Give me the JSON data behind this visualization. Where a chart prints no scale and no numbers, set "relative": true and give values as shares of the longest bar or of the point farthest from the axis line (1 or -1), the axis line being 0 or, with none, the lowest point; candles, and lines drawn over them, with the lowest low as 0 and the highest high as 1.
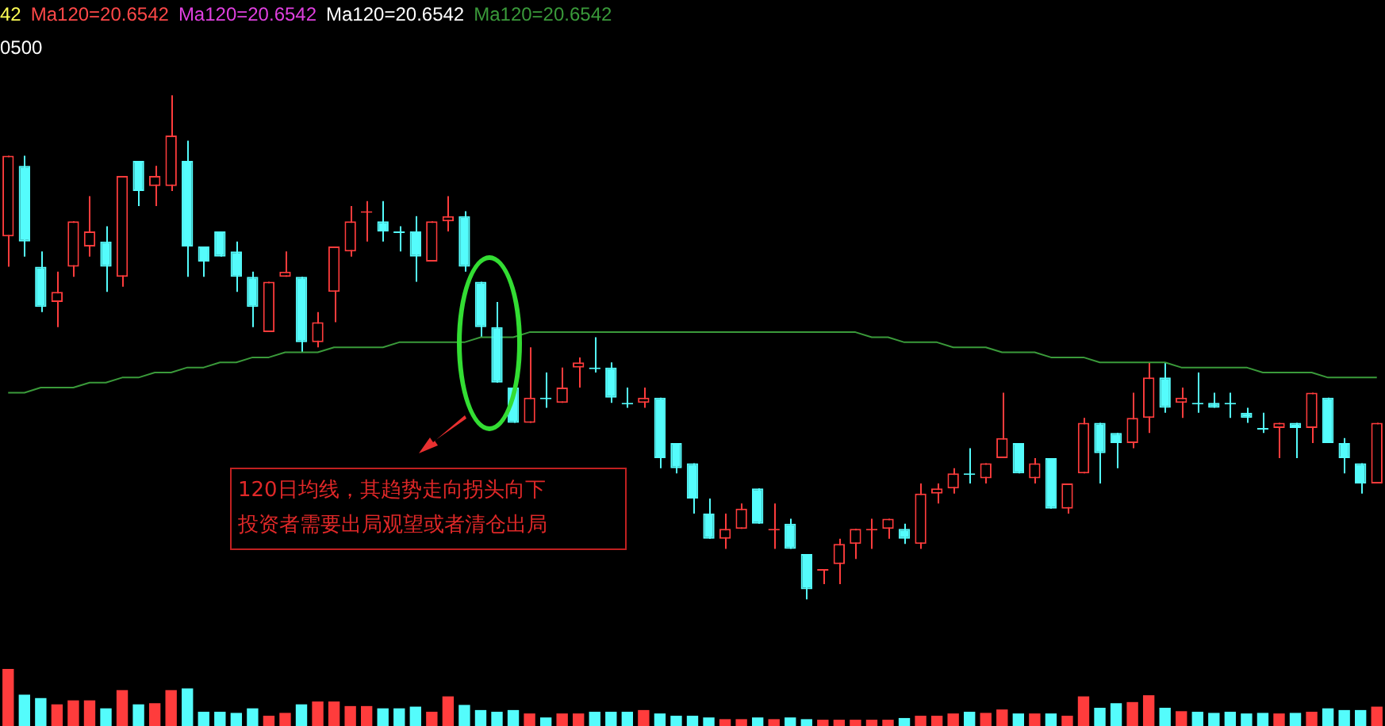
{
  "chart_data": [
    {
      "type": "candlestick",
      "relative": true,
      "legend": "top left",
      "categories": [
        null,
        null,
        null,
        null,
        null,
        null,
        null,
        null,
        null,
        null,
        null,
        null,
        null,
        null,
        null,
        null,
        null,
        null,
        null,
        null,
        null,
        null,
        null,
        null,
        null,
        null,
        null,
        null,
        null,
        null,
        null,
        null,
        null,
        null,
        null,
        null,
        null,
        null,
        null,
        null,
        null,
        null,
        null,
        null,
        null,
        null,
        null,
        null,
        null,
        null,
        null,
        null,
        null,
        null,
        null,
        null,
        null,
        null,
        null,
        null,
        null,
        null,
        null,
        null,
        null,
        null,
        null,
        null,
        null,
        null,
        null,
        null,
        null,
        null,
        null,
        null,
        null,
        null,
        null,
        null,
        null,
        null,
        null,
        null,
        null
      ],
      "ohlc": [
        [
          0.72,
          0.88,
          0.66,
          0.88
        ],
        [
          0.86,
          0.88,
          0.68,
          0.71
        ],
        [
          0.66,
          0.69,
          0.57,
          0.58
        ],
        [
          0.59,
          0.65,
          0.54,
          0.61
        ],
        [
          0.66,
          0.75,
          0.64,
          0.75
        ],
        [
          0.7,
          0.8,
          0.68,
          0.73
        ],
        [
          0.71,
          0.74,
          0.61,
          0.66
        ],
        [
          0.64,
          0.84,
          0.62,
          0.84
        ],
        [
          0.87,
          0.87,
          0.78,
          0.81
        ],
        [
          0.82,
          0.86,
          0.78,
          0.84
        ],
        [
          0.82,
          1,
          0.81,
          0.92
        ],
        [
          0.87,
          0.91,
          0.64,
          0.7
        ],
        [
          0.7,
          0.7,
          0.64,
          0.67
        ],
        [
          0.73,
          0.73,
          0.68,
          0.68
        ],
        [
          0.69,
          0.71,
          0.61,
          0.64
        ],
        [
          0.64,
          0.65,
          0.54,
          0.58
        ],
        [
          0.53,
          0.63,
          0.53,
          0.63
        ],
        [
          0.64,
          0.69,
          0.64,
          0.65
        ],
        [
          0.64,
          0.64,
          0.49,
          0.51
        ],
        [
          0.51,
          0.57,
          0.5,
          0.55
        ],
        [
          0.61,
          0.7,
          0.55,
          0.7
        ],
        [
          0.69,
          0.78,
          0.68,
          0.75
        ],
        [
          0.77,
          0.79,
          0.71,
          0.77
        ],
        [
          0.75,
          0.79,
          0.71,
          0.73
        ],
        [
          0.73,
          0.74,
          0.69,
          0.73
        ],
        [
          0.73,
          0.76,
          0.63,
          0.68
        ],
        [
          0.67,
          0.75,
          0.67,
          0.75
        ],
        [
          0.75,
          0.8,
          0.73,
          0.76
        ],
        [
          0.76,
          0.77,
          0.65,
          0.66
        ],
        [
          0.63,
          0.63,
          0.52,
          0.54
        ],
        [
          0.54,
          0.59,
          0.43,
          0.43
        ],
        [
          0.42,
          0.42,
          0.35,
          0.35
        ],
        [
          0.35,
          0.5,
          0.35,
          0.4
        ],
        [
          0.4,
          0.45,
          0.38,
          0.4
        ],
        [
          0.39,
          0.46,
          0.39,
          0.42
        ],
        [
          0.46,
          0.48,
          0.42,
          0.47
        ],
        [
          0.46,
          0.52,
          0.45,
          0.46
        ],
        [
          0.46,
          0.47,
          0.39,
          0.4
        ],
        [
          0.39,
          0.42,
          0.38,
          0.39
        ],
        [
          0.39,
          0.42,
          0.38,
          0.4
        ],
        [
          0.4,
          0.4,
          0.26,
          0.28
        ],
        [
          0.31,
          0.31,
          0.25,
          0.26
        ],
        [
          0.27,
          0.27,
          0.17,
          0.2
        ],
        [
          0.17,
          0.2,
          0.12,
          0.12
        ],
        [
          0.12,
          0.17,
          0.1,
          0.14
        ],
        [
          0.14,
          0.19,
          0.14,
          0.18
        ],
        [
          0.22,
          0.22,
          0.15,
          0.15
        ],
        [
          0.14,
          0.19,
          0.1,
          0.14
        ],
        [
          0.15,
          0.16,
          0.1,
          0.1
        ],
        [
          0.09,
          0.09,
          0,
          0.02
        ],
        [
          0.06,
          0.06,
          0.03,
          0.06
        ],
        [
          0.07,
          0.12,
          0.03,
          0.11
        ],
        [
          0.11,
          0.14,
          0.08,
          0.14
        ],
        [
          0.14,
          0.16,
          0.1,
          0.14
        ],
        [
          0.14,
          0.16,
          0.12,
          0.16
        ],
        [
          0.14,
          0.15,
          0.11,
          0.12
        ],
        [
          0.11,
          0.23,
          0.1,
          0.21
        ],
        [
          0.21,
          0.23,
          0.19,
          0.22
        ],
        [
          0.22,
          0.26,
          0.21,
          0.25
        ],
        [
          0.25,
          0.3,
          0.23,
          0.25
        ],
        [
          0.24,
          0.27,
          0.23,
          0.27
        ],
        [
          0.28,
          0.41,
          0.28,
          0.32
        ],
        [
          0.31,
          0.31,
          0.25,
          0.25
        ],
        [
          0.24,
          0.28,
          0.23,
          0.27
        ],
        [
          0.28,
          0.28,
          0.18,
          0.18
        ],
        [
          0.18,
          0.23,
          0.17,
          0.23
        ],
        [
          0.25,
          0.36,
          0.25,
          0.35
        ],
        [
          0.35,
          0.35,
          0.23,
          0.29
        ],
        [
          0.33,
          0.33,
          0.26,
          0.31
        ],
        [
          0.31,
          0.41,
          0.3,
          0.36
        ],
        [
          0.36,
          0.47,
          0.33,
          0.44
        ],
        [
          0.44,
          0.47,
          0.37,
          0.38
        ],
        [
          0.39,
          0.42,
          0.36,
          0.4
        ],
        [
          0.39,
          0.45,
          0.37,
          0.39
        ],
        [
          0.39,
          0.41,
          0.38,
          0.38
        ],
        [
          0.39,
          0.41,
          0.36,
          0.39
        ],
        [
          0.37,
          0.38,
          0.35,
          0.36
        ],
        [
          0.34,
          0.37,
          0.33,
          0.34
        ],
        [
          0.34,
          0.35,
          0.28,
          0.35
        ],
        [
          0.35,
          0.35,
          0.28,
          0.34
        ],
        [
          0.34,
          0.41,
          0.31,
          0.41
        ],
        [
          0.4,
          0.4,
          0.31,
          0.31
        ],
        [
          0.31,
          0.32,
          0.25,
          0.28
        ],
        [
          0.27,
          0.27,
          0.21,
          0.23
        ],
        [
          0.23,
          0.35,
          0.23,
          0.35
        ]
      ],
      "colors": [
        "#ff3c3c",
        "#54fcfc",
        "#54fcfc",
        "#ff3c3c",
        "#ff3c3c",
        "#ff3c3c",
        "#54fcfc",
        "#ff3c3c",
        "#54fcfc",
        "#ff3c3c",
        "#ff3c3c",
        "#54fcfc",
        "#54fcfc",
        "#54fcfc",
        "#54fcfc",
        "#54fcfc",
        "#ff3c3c",
        "#ff3c3c",
        "#54fcfc",
        "#ff3c3c",
        "#ff3c3c",
        "#ff3c3c",
        "#ff3c3c",
        "#54fcfc",
        "#54fcfc",
        "#54fcfc",
        "#ff3c3c",
        "#ff3c3c",
        "#54fcfc",
        "#54fcfc",
        "#54fcfc",
        "#54fcfc",
        "#ff3c3c",
        "#54fcfc",
        "#ff3c3c",
        "#ff3c3c",
        "#54fcfc",
        "#54fcfc",
        "#54fcfc",
        "#ff3c3c",
        "#54fcfc",
        "#54fcfc",
        "#54fcfc",
        "#54fcfc",
        "#ff3c3c",
        "#ff3c3c",
        "#54fcfc",
        "#ff3c3c",
        "#54fcfc",
        "#54fcfc",
        "#ff3c3c",
        "#ff3c3c",
        "#ff3c3c",
        "#ff3c3c",
        "#ff3c3c",
        "#54fcfc",
        "#ff3c3c",
        "#ff3c3c",
        "#ff3c3c",
        "#54fcfc",
        "#ff3c3c",
        "#ff3c3c",
        "#54fcfc",
        "#ff3c3c",
        "#54fcfc",
        "#ff3c3c",
        "#ff3c3c",
        "#54fcfc",
        "#54fcfc",
        "#ff3c3c",
        "#ff3c3c",
        "#54fcfc",
        "#ff3c3c",
        "#54fcfc",
        "#54fcfc",
        "#54fcfc",
        "#54fcfc",
        "#54fcfc",
        "#ff3c3c",
        "#54fcfc",
        "#ff3c3c",
        "#54fcfc",
        "#54fcfc",
        "#54fcfc",
        "#ff3c3c"
      ],
      "series": [
        {
          "type": "line",
          "name": "Ma120=20.6542",
          "color": "#3a9a3a",
          "values": [
            0.41,
            0.41,
            0.42,
            0.42,
            0.42,
            0.43,
            0.43,
            0.44,
            0.44,
            0.45,
            0.45,
            0.46,
            0.46,
            0.47,
            0.47,
            0.48,
            0.48,
            0.49,
            0.49,
            0.49,
            0.5,
            0.5,
            0.5,
            0.5,
            0.51,
            0.51,
            0.51,
            0.51,
            0.51,
            0.52,
            0.52,
            0.52,
            0.53,
            0.53,
            0.53,
            0.53,
            0.53,
            0.53,
            0.53,
            0.53,
            0.53,
            0.53,
            0.53,
            0.53,
            0.53,
            0.53,
            0.53,
            0.53,
            0.53,
            0.53,
            0.53,
            0.53,
            0.53,
            0.52,
            0.52,
            0.51,
            0.51,
            0.51,
            0.5,
            0.5,
            0.5,
            0.49,
            0.49,
            0.49,
            0.48,
            0.48,
            0.48,
            0.47,
            0.47,
            0.47,
            0.47,
            0.47,
            0.46,
            0.46,
            0.46,
            0.46,
            0.46,
            0.45,
            0.45,
            0.45,
            0.45,
            0.44,
            0.44,
            0.44,
            0.44
          ]
        }
      ],
      "annotations": [
        "42",
        "Ma120=20.6542",
        "Ma120=20.6542",
        "Ma120=20.6542",
        "0500",
        "120日均线，其趋势走向拐头向下",
        "投资者需要出局观望或者清仓出局"
      ]
    },
    {
      "type": "bar",
      "relative": true,
      "categories": [
        null,
        null,
        null,
        null,
        null,
        null,
        null,
        null,
        null,
        null,
        null,
        null,
        null,
        null,
        null,
        null,
        null,
        null,
        null,
        null,
        null,
        null,
        null,
        null,
        null,
        null,
        null,
        null,
        null,
        null,
        null,
        null,
        null,
        null,
        null,
        null,
        null,
        null,
        null,
        null,
        null,
        null,
        null,
        null,
        null,
        null,
        null,
        null,
        null,
        null,
        null,
        null,
        null,
        null,
        null,
        null,
        null,
        null,
        null,
        null,
        null,
        null,
        null,
        null,
        null,
        null,
        null,
        null,
        null,
        null,
        null,
        null,
        null,
        null,
        null,
        null,
        null,
        null,
        null,
        null,
        null,
        null,
        null,
        null,
        null
      ],
      "values": [
        1.0,
        0.55,
        0.49,
        0.38,
        0.45,
        0.45,
        0.31,
        0.63,
        0.38,
        0.4,
        0.63,
        0.66,
        0.25,
        0.25,
        0.23,
        0.31,
        0.18,
        0.23,
        0.38,
        0.43,
        0.43,
        0.35,
        0.35,
        0.31,
        0.31,
        0.34,
        0.25,
        0.52,
        0.37,
        0.28,
        0.25,
        0.28,
        0.22,
        0.15,
        0.22,
        0.22,
        0.25,
        0.25,
        0.25,
        0.28,
        0.22,
        0.18,
        0.18,
        0.15,
        0.12,
        0.12,
        0.15,
        0.12,
        0.15,
        0.12,
        0.11,
        0.11,
        0.11,
        0.11,
        0.11,
        0.14,
        0.18,
        0.18,
        0.22,
        0.25,
        0.23,
        0.29,
        0.22,
        0.22,
        0.22,
        0.18,
        0.52,
        0.32,
        0.4,
        0.42,
        0.54,
        0.32,
        0.26,
        0.25,
        0.23,
        0.25,
        0.22,
        0.23,
        0.22,
        0.23,
        0.25,
        0.31,
        0.28,
        0.28,
        0.34
      ],
      "colors": [
        "#ff3c3c",
        "#54fcfc",
        "#54fcfc",
        "#ff3c3c",
        "#ff3c3c",
        "#ff3c3c",
        "#54fcfc",
        "#ff3c3c",
        "#54fcfc",
        "#ff3c3c",
        "#ff3c3c",
        "#54fcfc",
        "#54fcfc",
        "#54fcfc",
        "#54fcfc",
        "#54fcfc",
        "#ff3c3c",
        "#ff3c3c",
        "#54fcfc",
        "#ff3c3c",
        "#ff3c3c",
        "#ff3c3c",
        "#ff3c3c",
        "#54fcfc",
        "#54fcfc",
        "#54fcfc",
        "#ff3c3c",
        "#ff3c3c",
        "#54fcfc",
        "#54fcfc",
        "#54fcfc",
        "#54fcfc",
        "#ff3c3c",
        "#54fcfc",
        "#ff3c3c",
        "#ff3c3c",
        "#54fcfc",
        "#54fcfc",
        "#54fcfc",
        "#ff3c3c",
        "#54fcfc",
        "#54fcfc",
        "#54fcfc",
        "#54fcfc",
        "#ff3c3c",
        "#ff3c3c",
        "#54fcfc",
        "#ff3c3c",
        "#54fcfc",
        "#54fcfc",
        "#ff3c3c",
        "#ff3c3c",
        "#ff3c3c",
        "#ff3c3c",
        "#ff3c3c",
        "#54fcfc",
        "#ff3c3c",
        "#ff3c3c",
        "#ff3c3c",
        "#54fcfc",
        "#ff3c3c",
        "#ff3c3c",
        "#54fcfc",
        "#ff3c3c",
        "#54fcfc",
        "#ff3c3c",
        "#ff3c3c",
        "#54fcfc",
        "#54fcfc",
        "#ff3c3c",
        "#ff3c3c",
        "#54fcfc",
        "#ff3c3c",
        "#54fcfc",
        "#54fcfc",
        "#54fcfc",
        "#54fcfc",
        "#54fcfc",
        "#ff3c3c",
        "#54fcfc",
        "#ff3c3c",
        "#54fcfc",
        "#54fcfc",
        "#54fcfc",
        "#ff3c3c"
      ]
    }
  ]
}
